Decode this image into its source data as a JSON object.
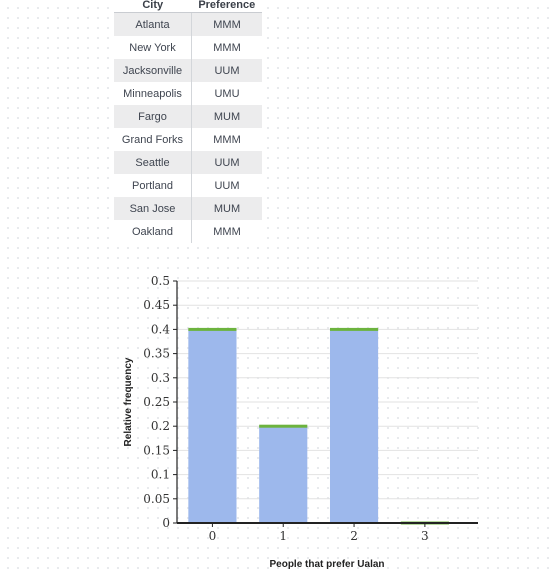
{
  "table": {
    "headers": {
      "city": "City",
      "preference": "Preference"
    },
    "rows": [
      {
        "city": "Atlanta",
        "preference": "MMM"
      },
      {
        "city": "New York",
        "preference": "MMM"
      },
      {
        "city": "Jacksonville",
        "preference": "UUM"
      },
      {
        "city": "Minneapolis",
        "preference": "UMU"
      },
      {
        "city": "Fargo",
        "preference": "MUM"
      },
      {
        "city": "Grand Forks",
        "preference": "MMM"
      },
      {
        "city": "Seattle",
        "preference": "UUM"
      },
      {
        "city": "Portland",
        "preference": "UUM"
      },
      {
        "city": "San Jose",
        "preference": "MUM"
      },
      {
        "city": "Oakland",
        "preference": "MMM"
      }
    ]
  },
  "chart_data": {
    "type": "bar",
    "categories": [
      "0",
      "1",
      "2",
      "3"
    ],
    "values": [
      0.4,
      0.2,
      0.4,
      0
    ],
    "xlabel": "People that prefer Ualan",
    "ylabel": "Relative frequency",
    "ylim": [
      0,
      0.5
    ],
    "yticks": [
      "0",
      "0.05",
      "0.1",
      "0.15",
      "0.2",
      "0.25",
      "0.3",
      "0.35",
      "0.4",
      "0.45",
      "0.5"
    ],
    "grid": true,
    "colors": {
      "bar": "#9db8ec",
      "bar_top": "#6cb33e",
      "grid": "#e2e2e2",
      "axis": "#222222"
    }
  }
}
